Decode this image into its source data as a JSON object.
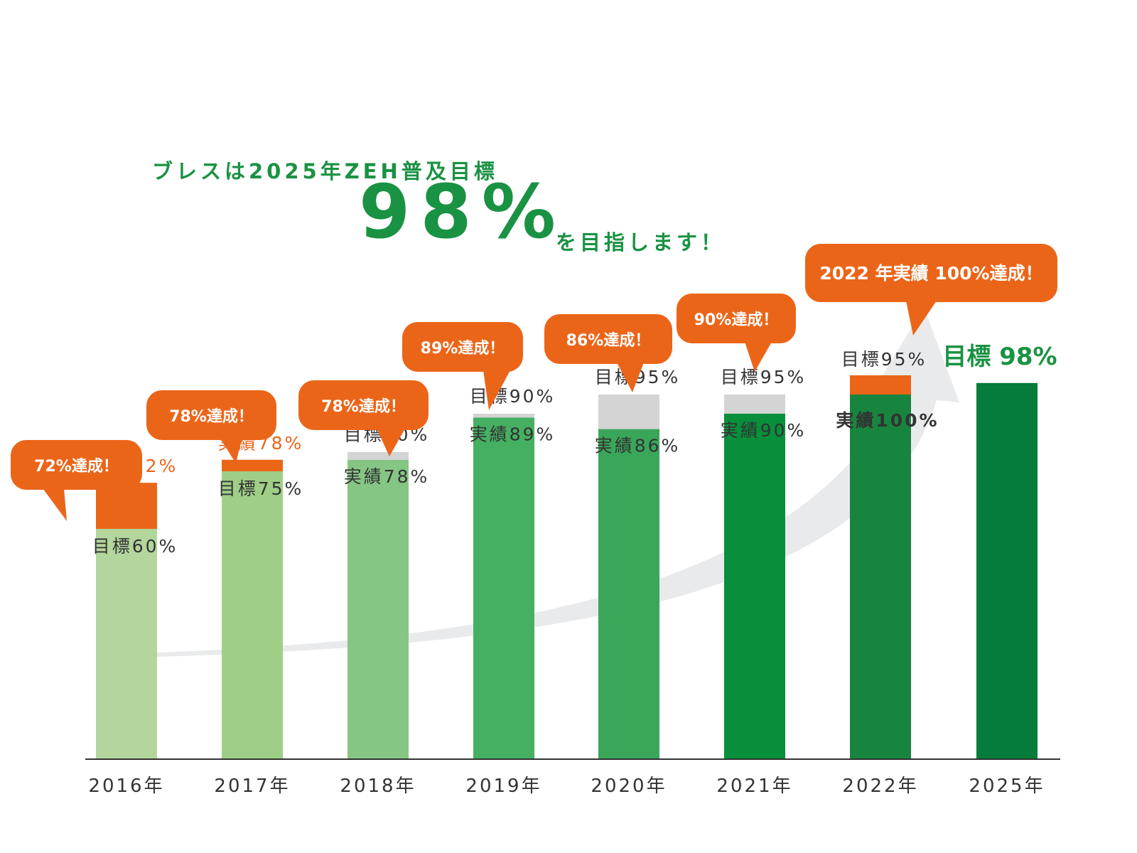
{
  "headline": {
    "line1": "ブレスは2025年ZEH普及目標",
    "big": "98%",
    "line2": "を目指します！"
  },
  "colors": {
    "achieved": "#eb6519",
    "gap": "#d4d4d4",
    "arrow": "#e9eaec",
    "axis": "#333333",
    "headline": "#1a9243"
  },
  "chart_data": {
    "type": "bar",
    "categories": [
      "2016年",
      "2017年",
      "2018年",
      "2019年",
      "2020年",
      "2021年",
      "2022年",
      "2025年"
    ],
    "series": [
      {
        "name": "目標",
        "values": [
          60,
          75,
          80,
          90,
          95,
          95,
          95,
          98
        ]
      },
      {
        "name": "実績",
        "values": [
          72,
          78,
          78,
          89,
          86,
          90,
          100,
          null
        ]
      }
    ],
    "bar_colors": [
      "#b3d69d",
      "#9fcf87",
      "#86c684",
      "#45b062",
      "#3aa659",
      "#078f3c",
      "#18853f",
      "#057c39"
    ],
    "ylim": [
      0,
      100
    ],
    "target_labels": [
      "目標60%",
      "目標75%",
      "目標80%",
      "目標90%",
      "目標95%",
      "目標95%",
      "目標95%",
      "目標 98%"
    ],
    "actual_labels": [
      "実績72%",
      "実績78%",
      "実績78%",
      "実績89%",
      "実績86%",
      "実績90%",
      "実績100%",
      ""
    ],
    "callouts": [
      "72%達成！",
      "78%達成！",
      "78%達成！",
      "89%達成！",
      "86%達成！",
      "90%達成！",
      "2022 年実績 100%達成！",
      ""
    ]
  }
}
